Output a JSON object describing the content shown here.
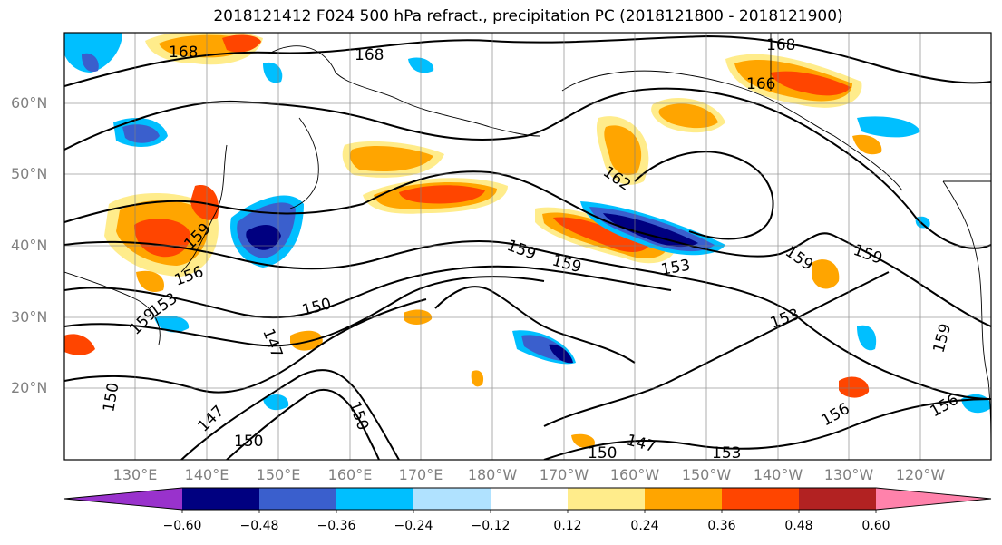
{
  "title": "2018121412 F024 500 hPa refract., precipitation PC (2018121800 - 2018121900)",
  "lat_labels": [
    "60°N",
    "50°N",
    "40°N",
    "30°N",
    "20°N"
  ],
  "lon_labels": [
    "130°E",
    "140°E",
    "150°E",
    "160°E",
    "170°E",
    "180°W",
    "170°W",
    "160°W",
    "150°W",
    "140°W",
    "130°W",
    "120°W"
  ],
  "colorbar": {
    "ticks": [
      "−0.60",
      "−0.48",
      "−0.36",
      "−0.24",
      "−0.12",
      "0.12",
      "0.24",
      "0.36",
      "0.48",
      "0.60"
    ],
    "colors": [
      "#9932cc",
      "#000080",
      "#3a5fcd",
      "#00bfff",
      "#b0e2ff",
      "#ffffff",
      "#ffec8b",
      "#ffa500",
      "#ff4500",
      "#b22222",
      "#ff82ab"
    ]
  },
  "contour_labels": [
    "168",
    "168",
    "168",
    "166",
    "162",
    "159",
    "159",
    "159",
    "159",
    "159",
    "159",
    "156",
    "153",
    "153",
    "153",
    "150",
    "150",
    "150",
    "147",
    "147",
    "147",
    "156",
    "156",
    "159",
    "153",
    "150",
    "150"
  ],
  "colors": {
    "positive_strong": "#ff4500",
    "positive_mid": "#ffa500",
    "positive_weak": "#ffec8b",
    "negative_strong": "#000080",
    "negative_mid": "#3a5fcd",
    "negative_weak": "#00bfff",
    "negative_faint": "#b0e2ff"
  }
}
